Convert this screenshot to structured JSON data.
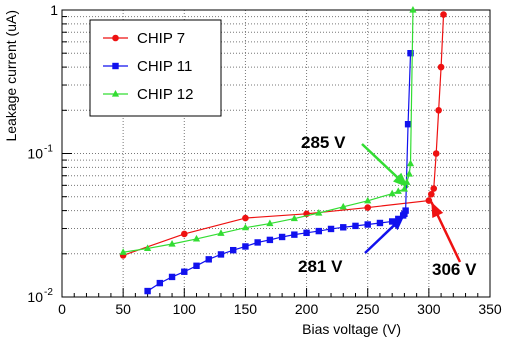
{
  "chart_data": {
    "type": "line",
    "title": "",
    "xlabel": "Bias voltage (V)",
    "ylabel": "Leakage current (uA)",
    "xlim": [
      0,
      350
    ],
    "ylim": [
      0.01,
      1
    ],
    "yscale": "log",
    "grid": true,
    "legend_position": "top-left",
    "x_ticks": [
      "0",
      "50",
      "100",
      "150",
      "200",
      "250",
      "300",
      "350"
    ],
    "y_ticks": [
      {
        "value": 0.01,
        "base": "10",
        "exp": "-2"
      },
      {
        "value": 0.1,
        "base": "10",
        "exp": "-1"
      },
      {
        "value": 1,
        "base": "1",
        "exp": ""
      }
    ],
    "series": [
      {
        "name": "CHIP 7",
        "color": "#ee1111",
        "marker": "circle",
        "x": [
          50,
          100,
          150,
          200,
          250,
          300,
          302,
          304,
          306,
          308,
          310,
          312
        ],
        "y": [
          0.0195,
          0.0275,
          0.0355,
          0.038,
          0.042,
          0.047,
          0.052,
          0.057,
          0.1,
          0.2,
          0.4,
          0.93
        ]
      },
      {
        "name": "CHIP 11",
        "color": "#1111ee",
        "marker": "square",
        "x": [
          70,
          80,
          90,
          100,
          110,
          120,
          130,
          140,
          150,
          160,
          170,
          180,
          190,
          200,
          210,
          220,
          230,
          240,
          250,
          260,
          270,
          275,
          279,
          280,
          281,
          283,
          285
        ],
        "y": [
          0.011,
          0.0125,
          0.0138,
          0.015,
          0.0165,
          0.0183,
          0.0198,
          0.0212,
          0.0225,
          0.024,
          0.025,
          0.0262,
          0.0272,
          0.028,
          0.0288,
          0.0298,
          0.0306,
          0.0313,
          0.032,
          0.0328,
          0.0336,
          0.035,
          0.037,
          0.038,
          0.04,
          0.16,
          0.5
        ]
      },
      {
        "name": "CHIP 12",
        "color": "#33dd33",
        "marker": "triangle",
        "x": [
          50,
          70,
          90,
          110,
          130,
          150,
          170,
          190,
          210,
          230,
          250,
          270,
          275,
          280,
          282,
          284,
          285,
          287
        ],
        "y": [
          0.0205,
          0.0218,
          0.0234,
          0.0254,
          0.0278,
          0.0304,
          0.0325,
          0.0352,
          0.0385,
          0.0425,
          0.0468,
          0.0525,
          0.0545,
          0.0565,
          0.063,
          0.072,
          0.085,
          1.0
        ]
      }
    ],
    "annotations": [
      {
        "text": "285 V",
        "color": "#33dd33"
      },
      {
        "text": "281 V",
        "color": "#1111ee"
      },
      {
        "text": "306 V",
        "color": "#ee1111"
      }
    ]
  }
}
